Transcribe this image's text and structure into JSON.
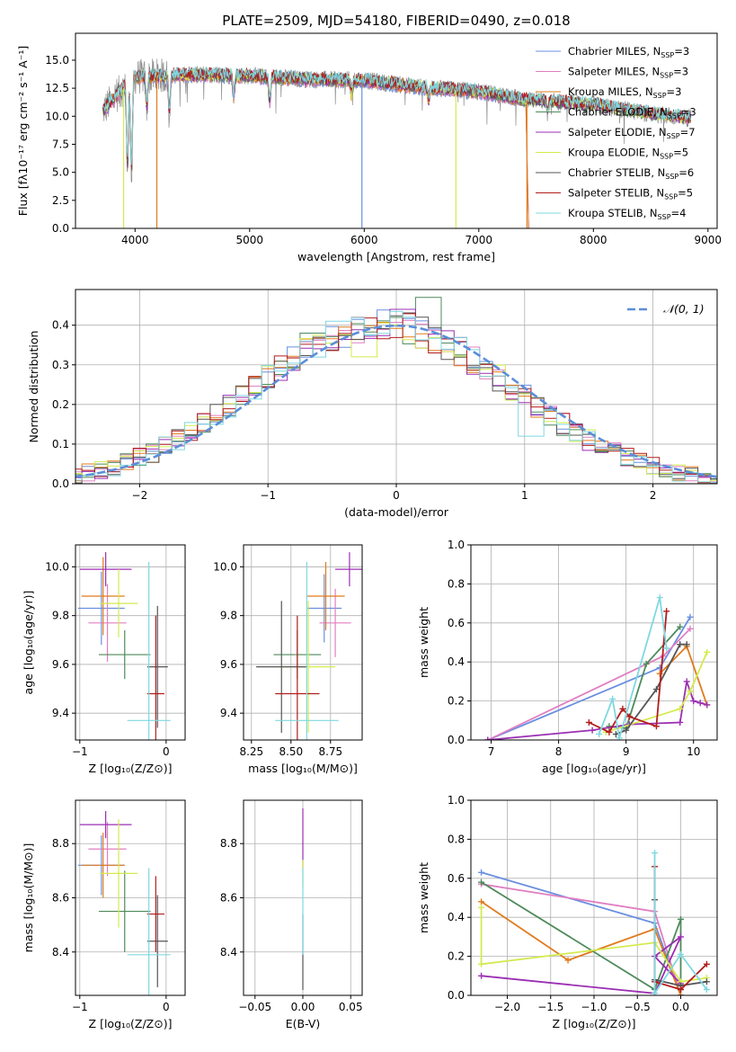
{
  "figure": {
    "title": "PLATE=2509, MJD=54180, FIBERID=0490, z=0.018"
  },
  "colors": {
    "Chabrier MILES": "#6a8fe0",
    "Salpeter MILES": "#e07fc2",
    "Kroupa MILES": "#e07b1d",
    "Chabrier ELODIE": "#4e8a5a",
    "Salpeter ELODIE": "#9b2fb3",
    "Kroupa ELODIE": "#d4ea4e",
    "Chabrier STELIB": "#555555",
    "Salpeter STELIB": "#b31c1c",
    "Kroupa STELIB": "#7fd8e0",
    "spectrum_data": "#8c8c8c",
    "normal_curve": "#5b8ed8",
    "grid": "#b0b0b0"
  },
  "chart_data": [
    {
      "id": "spectrum",
      "type": "line",
      "title": "PLATE=2509, MJD=54180, FIBERID=0490, z=0.018",
      "xlabel": "wavelength [Angstrom, rest frame]",
      "ylabel": "Flux [fλ10⁻¹⁷ erg cm⁻² s⁻¹ A⁻¹]",
      "xlim": [
        3480,
        9080
      ],
      "ylim": [
        0,
        17.4
      ],
      "xticks": [
        4000,
        5000,
        6000,
        7000,
        8000,
        9000
      ],
      "yticks": [
        0.0,
        2.5,
        5.0,
        7.5,
        10.0,
        12.5,
        15.0
      ],
      "grid": false,
      "legend_position": "top-right",
      "legend": [
        {
          "label": "Chabrier MILES, N",
          "sub": "SSP",
          "suffix": "=3"
        },
        {
          "label": "Salpeter MILES, N",
          "sub": "SSP",
          "suffix": "=3"
        },
        {
          "label": "Kroupa MILES, N",
          "sub": "SSP",
          "suffix": "=3"
        },
        {
          "label": "Chabrier ELODIE, N",
          "sub": "SSP",
          "suffix": "=3"
        },
        {
          "label": "Salpeter ELODIE, N",
          "sub": "SSP",
          "suffix": "=7"
        },
        {
          "label": "Kroupa ELODIE, N",
          "sub": "SSP",
          "suffix": "=5"
        },
        {
          "label": "Chabrier STELIB, N",
          "sub": "SSP",
          "suffix": "=6"
        },
        {
          "label": "Salpeter STELIB, N",
          "sub": "SSP",
          "suffix": "=5"
        },
        {
          "label": "Kroupa STELIB, N",
          "sub": "SSP",
          "suffix": "=4"
        }
      ],
      "x_range": [
        3720,
        8850
      ],
      "continuum": [
        [
          3720,
          10.5
        ],
        [
          3850,
          12.0
        ],
        [
          4000,
          13.5
        ],
        [
          4500,
          13.7
        ],
        [
          5000,
          13.6
        ],
        [
          5500,
          13.3
        ],
        [
          6000,
          13.2
        ],
        [
          6500,
          12.6
        ],
        [
          7000,
          12.2
        ],
        [
          7400,
          11.5
        ],
        [
          8000,
          11.0
        ],
        [
          8500,
          10.2
        ],
        [
          8850,
          9.8
        ]
      ],
      "features": [
        {
          "x": 3934,
          "depth": 8.0
        },
        {
          "x": 3969,
          "depth": 9.0
        },
        {
          "x": 4102,
          "depth": 3.0
        },
        {
          "x": 4300,
          "depth": 3.5
        },
        {
          "x": 4861,
          "depth": 2.0
        },
        {
          "x": 5175,
          "depth": 2.5
        },
        {
          "x": 5890,
          "depth": 1.5
        },
        {
          "x": 6563,
          "depth": 1.2
        },
        {
          "x": 7600,
          "depth": 1.0
        }
      ],
      "spikes": [
        {
          "series": "Kroupa ELODIE",
          "x": 3900
        },
        {
          "series": "Kroupa MILES",
          "x": 4190
        },
        {
          "series": "Chabrier MILES",
          "x": 5980
        },
        {
          "series": "Kroupa ELODIE",
          "x": 6800
        },
        {
          "series": "Kroupa MILES",
          "x": 7420
        }
      ],
      "cutoffs": [
        {
          "series": "Chabrier MILES",
          "x_end": 7410
        },
        {
          "series": "Kroupa MILES",
          "x_end": 7410
        },
        {
          "series": "Salpeter MILES",
          "x_end": 7410
        }
      ]
    },
    {
      "id": "residuals",
      "type": "histogram",
      "xlabel": "(data-model)/error",
      "ylabel": "Normed distribution",
      "xlim": [
        -2.5,
        2.5
      ],
      "ylim": [
        0,
        0.49
      ],
      "xticks": [
        -2,
        -1,
        0,
        1,
        2
      ],
      "yticks": [
        0.0,
        0.1,
        0.2,
        0.3,
        0.4
      ],
      "grid": true,
      "bin_width": 0.1,
      "legend": "𝒩(0, 1)",
      "legend_position": "top-right",
      "reference_curve": "normal(0,1)",
      "peaks": [
        {
          "series": "Chabrier ELODIE",
          "x": 0.25,
          "value": 0.47
        },
        {
          "series": "Salpeter ELODIE",
          "x": 0.05,
          "value": 0.44
        },
        {
          "series": "Kroupa STELIB",
          "x": -0.45,
          "value": 0.41
        },
        {
          "series": "Chabrier ELODIE",
          "x": -0.65,
          "value": 0.38
        },
        {
          "series": "Kroupa ELODIE",
          "x": -0.25,
          "value": 0.32
        },
        {
          "series": "Kroupa STELIB",
          "x": 1.05,
          "value": 0.12
        },
        {
          "series": "Kroupa STELIB",
          "x": -1.45,
          "value": 0.15
        }
      ]
    },
    {
      "id": "age-vs-z",
      "type": "errorbar",
      "xlabel": "Z [log₁₀(Z/Z⊙)]",
      "ylabel": "age  [log₁₀(age/yr)]",
      "xlim": [
        -1.05,
        0.22
      ],
      "ylim": [
        9.29,
        10.09
      ],
      "xticks": [
        -1,
        0
      ],
      "yticks": [
        9.4,
        9.6,
        9.8,
        10.0
      ],
      "grid": true,
      "points": [
        {
          "series": "Chabrier MILES",
          "x": -0.75,
          "xerr": 0.27,
          "y": 9.83,
          "yerr": 0.15
        },
        {
          "series": "Salpeter MILES",
          "x": -0.68,
          "xerr": 0.22,
          "y": 9.77,
          "yerr": 0.16
        },
        {
          "series": "Kroupa MILES",
          "x": -0.73,
          "xerr": 0.25,
          "y": 9.88,
          "yerr": 0.16
        },
        {
          "series": "Chabrier ELODIE",
          "x": -0.48,
          "xerr": 0.3,
          "y": 9.64,
          "yerr": 0.1
        },
        {
          "series": "Salpeter ELODIE",
          "x": -0.7,
          "xerr": 0.3,
          "y": 9.99,
          "yerr": 0.07
        },
        {
          "series": "Kroupa ELODIE",
          "x": -0.55,
          "xerr": 0.22,
          "y": 9.85,
          "yerr": 0.14
        },
        {
          "series": "Chabrier STELIB",
          "x": -0.1,
          "xerr": 0.12,
          "y": 9.59,
          "yerr": 0.25
        },
        {
          "series": "Salpeter STELIB",
          "x": -0.12,
          "xerr": 0.1,
          "y": 9.48,
          "yerr": 0.32
        },
        {
          "series": "Kroupa STELIB",
          "x": -0.2,
          "xerr": 0.25,
          "y": 9.37,
          "yerr": 0.65
        }
      ]
    },
    {
      "id": "age-vs-mass",
      "type": "errorbar",
      "xlabel": "mass [log₁₀(M/M⊙)]",
      "ylabel": "",
      "xlim": [
        8.2,
        8.95
      ],
      "ylim": [
        9.29,
        10.09
      ],
      "xticks": [
        8.25,
        8.5,
        8.75
      ],
      "yticks": [
        9.4,
        9.6,
        9.8,
        10.0
      ],
      "grid": true,
      "points": [
        {
          "series": "Chabrier MILES",
          "x": 8.71,
          "xerr": 0.11,
          "y": 9.83,
          "yerr": 0.14
        },
        {
          "series": "Salpeter MILES",
          "x": 8.78,
          "xerr": 0.1,
          "y": 9.77,
          "yerr": 0.14
        },
        {
          "series": "Kroupa MILES",
          "x": 8.72,
          "xerr": 0.12,
          "y": 9.88,
          "yerr": 0.14
        },
        {
          "series": "Chabrier ELODIE",
          "x": 8.54,
          "xerr": 0.15,
          "y": 9.64,
          "yerr": 0.1
        },
        {
          "series": "Salpeter ELODIE",
          "x": 8.87,
          "xerr": 0.09,
          "y": 9.99,
          "yerr": 0.07
        },
        {
          "series": "Kroupa ELODIE",
          "x": 8.61,
          "xerr": 0.17,
          "y": 9.59,
          "yerr": 0.27
        },
        {
          "series": "Chabrier STELIB",
          "x": 8.44,
          "xerr": 0.16,
          "y": 9.59,
          "yerr": 0.27
        },
        {
          "series": "Salpeter STELIB",
          "x": 8.54,
          "xerr": 0.14,
          "y": 9.48,
          "yerr": 0.32
        },
        {
          "series": "Kroupa STELIB",
          "x": 8.6,
          "xerr": 0.2,
          "y": 9.37,
          "yerr": 0.65
        }
      ]
    },
    {
      "id": "weight-vs-age",
      "type": "line",
      "xlabel": "age  [log₁₀(age/yr)]",
      "ylabel": "mass weight",
      "xlim": [
        6.7,
        10.35
      ],
      "ylim": [
        0.0,
        1.0
      ],
      "xticks": [
        7,
        8,
        9,
        10
      ],
      "yticks": [
        0.0,
        0.2,
        0.4,
        0.6,
        0.8,
        1.0
      ],
      "grid": true,
      "series": [
        {
          "name": "Chabrier MILES",
          "x": [
            6.95,
            9.5,
            9.95
          ],
          "y": [
            0.0,
            0.37,
            0.63
          ]
        },
        {
          "name": "Salpeter MILES",
          "x": [
            6.95,
            9.55,
            9.95
          ],
          "y": [
            0.0,
            0.43,
            0.57
          ]
        },
        {
          "name": "Kroupa MILES",
          "x": [
            9.5,
            9.9,
            10.2
          ],
          "y": [
            0.34,
            0.48,
            0.18
          ]
        },
        {
          "name": "Chabrier ELODIE",
          "x": [
            8.75,
            9.0,
            9.3,
            9.8
          ],
          "y": [
            0.07,
            0.06,
            0.39,
            0.58
          ]
        },
        {
          "name": "Salpeter ELODIE",
          "x": [
            6.95,
            8.5,
            9.05,
            9.8,
            9.9,
            10.0,
            10.1,
            10.2
          ],
          "y": [
            0.0,
            0.05,
            0.08,
            0.09,
            0.3,
            0.2,
            0.19,
            0.18
          ]
        },
        {
          "name": "Kroupa ELODIE",
          "x": [
            8.7,
            9.8,
            9.95,
            10.2
          ],
          "y": [
            0.04,
            0.16,
            0.25,
            0.45
          ]
        },
        {
          "name": "Chabrier STELIB",
          "x": [
            8.85,
            9.0,
            9.45,
            9.8,
            9.9
          ],
          "y": [
            0.03,
            0.05,
            0.26,
            0.49,
            0.49
          ]
        },
        {
          "name": "Salpeter STELIB",
          "x": [
            8.45,
            8.75,
            8.95,
            9.05,
            9.45,
            9.6
          ],
          "y": [
            0.09,
            0.04,
            0.16,
            0.12,
            0.07,
            0.66
          ]
        },
        {
          "name": "Kroupa STELIB",
          "x": [
            8.6,
            8.8,
            8.9,
            9.5,
            9.6
          ],
          "y": [
            0.03,
            0.21,
            0.01,
            0.73,
            0.47
          ]
        }
      ]
    },
    {
      "id": "mass-vs-z",
      "type": "errorbar",
      "xlabel": "Z [log₁₀(Z/Z⊙)]",
      "ylabel": "mass [log₁₀(M/M⊙)]",
      "xlim": [
        -1.05,
        0.22
      ],
      "ylim": [
        8.24,
        8.96
      ],
      "xticks": [
        -1,
        0
      ],
      "yticks": [
        8.4,
        8.6,
        8.8
      ],
      "grid": true,
      "points": [
        {
          "series": "Chabrier MILES",
          "x": -0.75,
          "xerr": 0.27,
          "y": 8.72,
          "yerr": 0.11
        },
        {
          "series": "Salpeter MILES",
          "x": -0.68,
          "xerr": 0.22,
          "y": 8.78,
          "yerr": 0.1
        },
        {
          "series": "Kroupa MILES",
          "x": -0.73,
          "xerr": 0.25,
          "y": 8.72,
          "yerr": 0.12
        },
        {
          "series": "Chabrier ELODIE",
          "x": -0.48,
          "xerr": 0.3,
          "y": 8.55,
          "yerr": 0.15
        },
        {
          "series": "Salpeter ELODIE",
          "x": -0.7,
          "xerr": 0.3,
          "y": 8.87,
          "yerr": 0.05
        },
        {
          "series": "Kroupa ELODIE",
          "x": -0.55,
          "xerr": 0.22,
          "y": 8.69,
          "yerr": 0.2
        },
        {
          "series": "Chabrier STELIB",
          "x": -0.1,
          "xerr": 0.12,
          "y": 8.44,
          "yerr": 0.17
        },
        {
          "series": "Salpeter STELIB",
          "x": -0.12,
          "xerr": 0.1,
          "y": 8.54,
          "yerr": 0.14
        },
        {
          "series": "Kroupa STELIB",
          "x": -0.2,
          "xerr": 0.25,
          "y": 8.39,
          "yerr": 0.32
        }
      ]
    },
    {
      "id": "mass-vs-ebv",
      "type": "errorbar",
      "xlabel": "E(B-V)",
      "ylabel": "",
      "xlim": [
        -0.062,
        0.062
      ],
      "ylim": [
        8.24,
        8.96
      ],
      "xticks": [
        -0.05,
        0.0,
        0.05
      ],
      "yticks": [
        8.4,
        8.6,
        8.8
      ],
      "grid": true,
      "points": [
        {
          "series": "Salpeter ELODIE",
          "x": 0.0,
          "xerr": 0,
          "y": 8.82,
          "yerr": 0.11
        },
        {
          "series": "Kroupa ELODIE",
          "x": 0.0,
          "xerr": 0,
          "y": 8.69,
          "yerr": 0.05
        },
        {
          "series": "Chabrier STELIB",
          "x": 0.0,
          "xerr": 0,
          "y": 8.4,
          "yerr": 0.14
        },
        {
          "series": "Kroupa STELIB",
          "x": 0.0,
          "xerr": 0,
          "y": 8.55,
          "yerr": 0.16
        }
      ]
    },
    {
      "id": "weight-vs-z",
      "type": "line",
      "xlabel": "Z [log₁₀(Z/Z⊙)]",
      "ylabel": "mass weight",
      "xlim": [
        -2.42,
        0.42
      ],
      "ylim": [
        0.0,
        1.0
      ],
      "xticks": [
        -2.0,
        -1.5,
        -1.0,
        -0.5,
        0.0
      ],
      "yticks": [
        0.0,
        0.2,
        0.4,
        0.6,
        0.8,
        1.0
      ],
      "grid": true,
      "series": [
        {
          "name": "Chabrier MILES",
          "x": [
            -2.3,
            -0.3,
            0.0
          ],
          "y": [
            0.63,
            0.37,
            0.0
          ]
        },
        {
          "name": "Salpeter MILES",
          "x": [
            -2.3,
            -0.3,
            0.0
          ],
          "y": [
            0.57,
            0.43,
            0.0
          ]
        },
        {
          "name": "Kroupa MILES",
          "x": [
            -2.3,
            -1.3,
            -0.3,
            0.0
          ],
          "y": [
            0.48,
            0.18,
            0.34,
            0.0
          ]
        },
        {
          "name": "Chabrier ELODIE",
          "x": [
            -2.3,
            -0.3,
            0.0,
            0.0
          ],
          "y": [
            0.58,
            0.03,
            0.39,
            0.03
          ]
        },
        {
          "name": "Salpeter ELODIE",
          "x": [
            -2.3,
            -0.3,
            0.0,
            -0.3,
            0.0
          ],
          "y": [
            0.1,
            0.01,
            0.3,
            0.2,
            0.06
          ]
        },
        {
          "name": "Kroupa ELODIE",
          "x": [
            -2.3,
            -2.3,
            -0.3,
            0.0,
            0.3
          ],
          "y": [
            0.45,
            0.16,
            0.27,
            0.07,
            0.09
          ]
        },
        {
          "name": "Chabrier STELIB",
          "x": [
            -0.3,
            -0.3,
            0.0,
            0.3
          ],
          "y": [
            0.49,
            0.08,
            0.05,
            0.07
          ]
        },
        {
          "name": "Salpeter STELIB",
          "x": [
            -0.3,
            -0.3,
            0.0,
            0.3
          ],
          "y": [
            0.66,
            0.07,
            0.03,
            0.16
          ]
        },
        {
          "name": "Kroupa STELIB",
          "x": [
            -0.3,
            -0.3,
            0.0,
            0.3
          ],
          "y": [
            0.73,
            0.01,
            0.21,
            0.03
          ]
        }
      ]
    }
  ]
}
